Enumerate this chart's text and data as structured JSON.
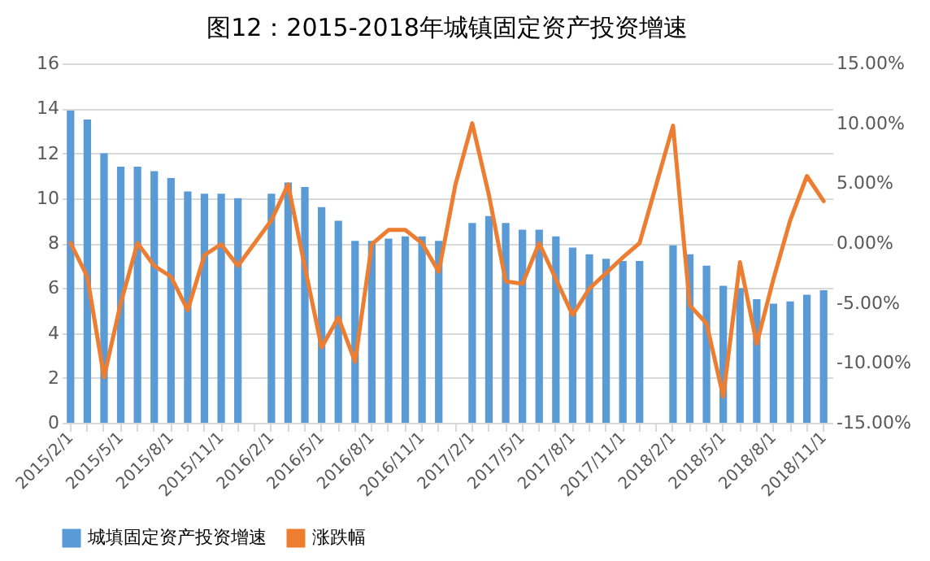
{
  "chart_data": {
    "type": "bar",
    "title": "图12：2015-2018年城镇固定资产投资增速",
    "categories": [
      "2015/2/1",
      null,
      null,
      "2015/5/1",
      null,
      null,
      "2015/8/1",
      null,
      null,
      "2015/11/1",
      null,
      null,
      "2016/2/1",
      null,
      null,
      "2016/5/1",
      null,
      null,
      "2016/8/1",
      null,
      null,
      "2016/11/1",
      null,
      null,
      "2017/2/1",
      null,
      null,
      "2017/5/1",
      null,
      null,
      "2017/8/1",
      null,
      null,
      "2017/11/1",
      null,
      null,
      "2018/2/1",
      null,
      null,
      "2018/5/1",
      null,
      null,
      "2018/8/1",
      null,
      null,
      "2018/11/1"
    ],
    "series": [
      {
        "name": "城填固定资产投资增速",
        "color": "#5b9bd5",
        "type": "bar",
        "values": [
          13.9,
          13.5,
          12.0,
          11.4,
          11.4,
          11.2,
          10.9,
          10.3,
          10.2,
          10.2,
          10.0,
          null,
          10.2,
          10.7,
          10.5,
          9.6,
          9.0,
          8.1,
          8.1,
          8.2,
          8.3,
          8.3,
          8.1,
          null,
          8.9,
          9.2,
          8.9,
          8.6,
          8.6,
          8.3,
          7.8,
          7.5,
          7.3,
          7.2,
          7.2,
          null,
          7.9,
          7.5,
          7.0,
          6.1,
          6.0,
          5.5,
          5.3,
          5.4,
          5.7,
          5.9
        ]
      },
      {
        "name": "涨跌幅",
        "color": "#ed7d31",
        "type": "line",
        "axis": "y2",
        "values": [
          0.0,
          -2.8,
          -11.2,
          -5.0,
          0.0,
          -1.9,
          -2.8,
          -5.6,
          -1.0,
          -0.1,
          -1.9,
          0.0,
          1.9,
          4.9,
          -2.0,
          -8.7,
          -6.2,
          -9.9,
          -0.1,
          1.1,
          1.1,
          0.0,
          -2.4,
          4.9,
          10.0,
          4.0,
          -3.2,
          -3.4,
          0.0,
          -3.0,
          -6.0,
          -3.8,
          -2.5,
          -1.2,
          0.0,
          4.9,
          9.8,
          -5.2,
          -6.7,
          -12.8,
          -1.6,
          -8.4,
          -3.0,
          1.9,
          5.6,
          3.5
        ]
      }
    ],
    "ylim": [
      0,
      16
    ],
    "yticks": [
      0,
      2,
      4,
      6,
      8,
      10,
      12,
      14,
      16
    ],
    "y2lim": [
      -15,
      15
    ],
    "y2ticks": [
      {
        "value": -15,
        "label": "-15.00%"
      },
      {
        "value": -10,
        "label": "-10.00%"
      },
      {
        "value": -5,
        "label": "-5.00%"
      },
      {
        "value": 0,
        "label": "0.00%"
      },
      {
        "value": 5,
        "label": "5.00%"
      },
      {
        "value": 10,
        "label": "10.00%"
      },
      {
        "value": 15,
        "label": "15.00%"
      }
    ],
    "grid": "y",
    "legend": "bottom",
    "marker": "none",
    "line_style": "solid"
  }
}
